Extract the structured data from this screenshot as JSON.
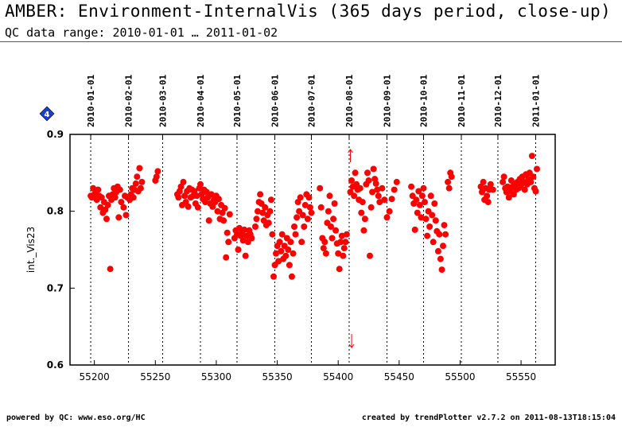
{
  "header": {
    "title": "AMBER: Environment-InternalVis (365 days period, close-up)",
    "subtitle": "QC data range: 2010-01-01 … 2011-01-02"
  },
  "footer": {
    "left": "powered by QC: www.eso.org/HC",
    "right": "created by trendPlotter v2.7.2 on 2011-08-13T18:15:04"
  },
  "colors": {
    "points": "#ff0000",
    "marker": "#1a3fd6"
  },
  "badge_label": "4",
  "chart_data": {
    "type": "scatter",
    "xlabel": "",
    "ylabel": "int._Vis23",
    "xlim": [
      55180,
      55578
    ],
    "ylim": [
      0.6,
      0.9
    ],
    "x_ticks": [
      55200,
      55250,
      55300,
      55350,
      55400,
      55450,
      55500,
      55550
    ],
    "y_ticks": [
      0.6,
      0.7,
      0.8,
      0.9
    ],
    "date_markers": [
      {
        "mjd": 55197,
        "label": "2010-01-01"
      },
      {
        "mjd": 55228,
        "label": "2010-02-01"
      },
      {
        "mjd": 55256,
        "label": "2010-03-01"
      },
      {
        "mjd": 55287,
        "label": "2010-04-01"
      },
      {
        "mjd": 55317,
        "label": "2010-05-01"
      },
      {
        "mjd": 55348,
        "label": "2010-06-01"
      },
      {
        "mjd": 55378,
        "label": "2010-07-01"
      },
      {
        "mjd": 55409,
        "label": "2010-08-01"
      },
      {
        "mjd": 55440,
        "label": "2010-09-01"
      },
      {
        "mjd": 55470,
        "label": "2010-10-01"
      },
      {
        "mjd": 55501,
        "label": "2010-11-01"
      },
      {
        "mjd": 55531,
        "label": "2010-12-01"
      },
      {
        "mjd": 55562,
        "label": "2011-01-01"
      }
    ],
    "outlier_arrows": [
      {
        "mjd": 55410,
        "direction": "up"
      },
      {
        "mjd": 55411,
        "direction": "down"
      }
    ],
    "series": [
      {
        "points": [
          [
            55197,
            0.82
          ],
          [
            55198,
            0.818
          ],
          [
            55199,
            0.83
          ],
          [
            55200,
            0.822
          ],
          [
            55201,
            0.826
          ],
          [
            55202,
            0.815
          ],
          [
            55203,
            0.828
          ],
          [
            55204,
            0.82
          ],
          [
            55205,
            0.805
          ],
          [
            55206,
            0.818
          ],
          [
            55207,
            0.798
          ],
          [
            55208,
            0.812
          ],
          [
            55209,
            0.802
          ],
          [
            55210,
            0.79
          ],
          [
            55211,
            0.808
          ],
          [
            55212,
            0.82
          ],
          [
            55213,
            0.725
          ],
          [
            55214,
            0.815
          ],
          [
            55215,
            0.822
          ],
          [
            55216,
            0.83
          ],
          [
            55217,
            0.818
          ],
          [
            55218,
            0.825
          ],
          [
            55219,
            0.832
          ],
          [
            55220,
            0.792
          ],
          [
            55221,
            0.828
          ],
          [
            55222,
            0.812
          ],
          [
            55224,
            0.805
          ],
          [
            55225,
            0.82
          ],
          [
            55226,
            0.795
          ],
          [
            55227,
            0.818
          ],
          [
            55229,
            0.815
          ],
          [
            55230,
            0.822
          ],
          [
            55231,
            0.83
          ],
          [
            55232,
            0.818
          ],
          [
            55233,
            0.828
          ],
          [
            55234,
            0.836
          ],
          [
            55235,
            0.845
          ],
          [
            55236,
            0.826
          ],
          [
            55237,
            0.856
          ],
          [
            55238,
            0.83
          ],
          [
            55239,
            0.838
          ],
          [
            55250,
            0.84
          ],
          [
            55251,
            0.845
          ],
          [
            55252,
            0.852
          ],
          [
            55268,
            0.822
          ],
          [
            55269,
            0.818
          ],
          [
            55270,
            0.826
          ],
          [
            55271,
            0.832
          ],
          [
            55272,
            0.808
          ],
          [
            55273,
            0.838
          ],
          [
            55274,
            0.82
          ],
          [
            55275,
            0.812
          ],
          [
            55276,
            0.826
          ],
          [
            55277,
            0.806
          ],
          [
            55278,
            0.83
          ],
          [
            55279,
            0.818
          ],
          [
            55280,
            0.828
          ],
          [
            55281,
            0.82
          ],
          [
            55282,
            0.826
          ],
          [
            55283,
            0.81
          ],
          [
            55284,
            0.82
          ],
          [
            55285,
            0.805
          ],
          [
            55286,
            0.83
          ],
          [
            55287,
            0.835
          ],
          [
            55288,
            0.822
          ],
          [
            55289,
            0.816
          ],
          [
            55290,
            0.828
          ],
          [
            55291,
            0.812
          ],
          [
            55292,
            0.825
          ],
          [
            55293,
            0.818
          ],
          [
            55294,
            0.788
          ],
          [
            55295,
            0.81
          ],
          [
            55296,
            0.822
          ],
          [
            55297,
            0.806
          ],
          [
            55298,
            0.815
          ],
          [
            55299,
            0.812
          ],
          [
            55300,
            0.82
          ],
          [
            55301,
            0.8
          ],
          [
            55302,
            0.816
          ],
          [
            55303,
            0.79
          ],
          [
            55304,
            0.808
          ],
          [
            55305,
            0.798
          ],
          [
            55306,
            0.788
          ],
          [
            55307,
            0.804
          ],
          [
            55308,
            0.74
          ],
          [
            55309,
            0.772
          ],
          [
            55310,
            0.76
          ],
          [
            55311,
            0.796
          ],
          [
            55315,
            0.765
          ],
          [
            55316,
            0.775
          ],
          [
            55317,
            0.77
          ],
          [
            55318,
            0.75
          ],
          [
            55319,
            0.778
          ],
          [
            55320,
            0.768
          ],
          [
            55321,
            0.772
          ],
          [
            55322,
            0.762
          ],
          [
            55323,
            0.776
          ],
          [
            55324,
            0.742
          ],
          [
            55325,
            0.768
          ],
          [
            55326,
            0.76
          ],
          [
            55327,
            0.775
          ],
          [
            55328,
            0.77
          ],
          [
            55329,
            0.765
          ],
          [
            55332,
            0.78
          ],
          [
            55333,
            0.79
          ],
          [
            55334,
            0.8
          ],
          [
            55335,
            0.812
          ],
          [
            55336,
            0.822
          ],
          [
            55337,
            0.81
          ],
          [
            55338,
            0.798
          ],
          [
            55339,
            0.788
          ],
          [
            55340,
            0.805
          ],
          [
            55341,
            0.782
          ],
          [
            55342,
            0.795
          ],
          [
            55343,
            0.785
          ],
          [
            55344,
            0.8
          ],
          [
            55345,
            0.815
          ],
          [
            55346,
            0.77
          ],
          [
            55347,
            0.715
          ],
          [
            55348,
            0.73
          ],
          [
            55349,
            0.745
          ],
          [
            55350,
            0.755
          ],
          [
            55351,
            0.735
          ],
          [
            55352,
            0.76
          ],
          [
            55353,
            0.748
          ],
          [
            55354,
            0.77
          ],
          [
            55355,
            0.738
          ],
          [
            55356,
            0.755
          ],
          [
            55357,
            0.742
          ],
          [
            55358,
            0.765
          ],
          [
            55359,
            0.75
          ],
          [
            55360,
            0.73
          ],
          [
            55361,
            0.76
          ],
          [
            55362,
            0.715
          ],
          [
            55363,
            0.745
          ],
          [
            55364,
            0.78
          ],
          [
            55365,
            0.77
          ],
          [
            55366,
            0.792
          ],
          [
            55367,
            0.812
          ],
          [
            55368,
            0.8
          ],
          [
            55369,
            0.818
          ],
          [
            55370,
            0.76
          ],
          [
            55371,
            0.795
          ],
          [
            55372,
            0.78
          ],
          [
            55373,
            0.808
          ],
          [
            55374,
            0.822
          ],
          [
            55375,
            0.79
          ],
          [
            55376,
            0.818
          ],
          [
            55377,
            0.805
          ],
          [
            55378,
            0.798
          ],
          [
            55385,
            0.83
          ],
          [
            55386,
            0.805
          ],
          [
            55387,
            0.765
          ],
          [
            55388,
            0.752
          ],
          [
            55389,
            0.76
          ],
          [
            55390,
            0.745
          ],
          [
            55391,
            0.785
          ],
          [
            55392,
            0.8
          ],
          [
            55393,
            0.82
          ],
          [
            55394,
            0.78
          ],
          [
            55395,
            0.765
          ],
          [
            55396,
            0.79
          ],
          [
            55397,
            0.81
          ],
          [
            55398,
            0.775
          ],
          [
            55399,
            0.758
          ],
          [
            55400,
            0.745
          ],
          [
            55401,
            0.725
          ],
          [
            55402,
            0.76
          ],
          [
            55403,
            0.768
          ],
          [
            55404,
            0.742
          ],
          [
            55405,
            0.752
          ],
          [
            55406,
            0.76
          ],
          [
            55407,
            0.77
          ],
          [
            55410,
            0.825
          ],
          [
            55411,
            0.84
          ],
          [
            55412,
            0.832
          ],
          [
            55413,
            0.82
          ],
          [
            55414,
            0.85
          ],
          [
            55415,
            0.835
          ],
          [
            55416,
            0.828
          ],
          [
            55417,
            0.815
          ],
          [
            55418,
            0.83
          ],
          [
            55419,
            0.798
          ],
          [
            55420,
            0.812
          ],
          [
            55421,
            0.775
          ],
          [
            55422,
            0.79
          ],
          [
            55423,
            0.835
          ],
          [
            55424,
            0.85
          ],
          [
            55425,
            0.84
          ],
          [
            55426,
            0.742
          ],
          [
            55427,
            0.805
          ],
          [
            55428,
            0.825
          ],
          [
            55429,
            0.855
          ],
          [
            55430,
            0.842
          ],
          [
            55431,
            0.836
          ],
          [
            55432,
            0.828
          ],
          [
            55433,
            0.82
          ],
          [
            55434,
            0.812
          ],
          [
            55436,
            0.83
          ],
          [
            55438,
            0.815
          ],
          [
            55440,
            0.792
          ],
          [
            55442,
            0.8
          ],
          [
            55444,
            0.816
          ],
          [
            55446,
            0.828
          ],
          [
            55448,
            0.838
          ],
          [
            55460,
            0.832
          ],
          [
            55461,
            0.82
          ],
          [
            55462,
            0.81
          ],
          [
            55463,
            0.776
          ],
          [
            55464,
            0.815
          ],
          [
            55465,
            0.798
          ],
          [
            55466,
            0.826
          ],
          [
            55467,
            0.808
          ],
          [
            55468,
            0.792
          ],
          [
            55469,
            0.82
          ],
          [
            55470,
            0.83
          ],
          [
            55471,
            0.812
          ],
          [
            55472,
            0.79
          ],
          [
            55473,
            0.768
          ],
          [
            55474,
            0.8
          ],
          [
            55475,
            0.78
          ],
          [
            55476,
            0.82
          ],
          [
            55477,
            0.795
          ],
          [
            55478,
            0.76
          ],
          [
            55479,
            0.81
          ],
          [
            55480,
            0.788
          ],
          [
            55481,
            0.774
          ],
          [
            55482,
            0.748
          ],
          [
            55483,
            0.77
          ],
          [
            55484,
            0.738
          ],
          [
            55485,
            0.724
          ],
          [
            55486,
            0.755
          ],
          [
            55487,
            0.782
          ],
          [
            55488,
            0.77
          ],
          [
            55490,
            0.838
          ],
          [
            55491,
            0.83
          ],
          [
            55492,
            0.85
          ],
          [
            55493,
            0.845
          ],
          [
            55517,
            0.832
          ],
          [
            55518,
            0.825
          ],
          [
            55519,
            0.838
          ],
          [
            55520,
            0.815
          ],
          [
            55521,
            0.83
          ],
          [
            55522,
            0.82
          ],
          [
            55523,
            0.812
          ],
          [
            55524,
            0.828
          ],
          [
            55525,
            0.835
          ],
          [
            55527,
            0.828
          ],
          [
            55535,
            0.838
          ],
          [
            55536,
            0.845
          ],
          [
            55537,
            0.83
          ],
          [
            55538,
            0.825
          ],
          [
            55539,
            0.832
          ],
          [
            55540,
            0.818
          ],
          [
            55541,
            0.826
          ],
          [
            55542,
            0.84
          ],
          [
            55543,
            0.832
          ],
          [
            55544,
            0.822
          ],
          [
            55545,
            0.836
          ],
          [
            55546,
            0.828
          ],
          [
            55547,
            0.838
          ],
          [
            55548,
            0.83
          ],
          [
            55549,
            0.842
          ],
          [
            55550,
            0.834
          ],
          [
            55551,
            0.845
          ],
          [
            55552,
            0.838
          ],
          [
            55553,
            0.828
          ],
          [
            55554,
            0.848
          ],
          [
            55555,
            0.835
          ],
          [
            55556,
            0.842
          ],
          [
            55557,
            0.85
          ],
          [
            55558,
            0.838
          ],
          [
            55559,
            0.872
          ],
          [
            55560,
            0.845
          ],
          [
            55561,
            0.83
          ],
          [
            55562,
            0.826
          ],
          [
            55563,
            0.855
          ]
        ]
      }
    ]
  }
}
